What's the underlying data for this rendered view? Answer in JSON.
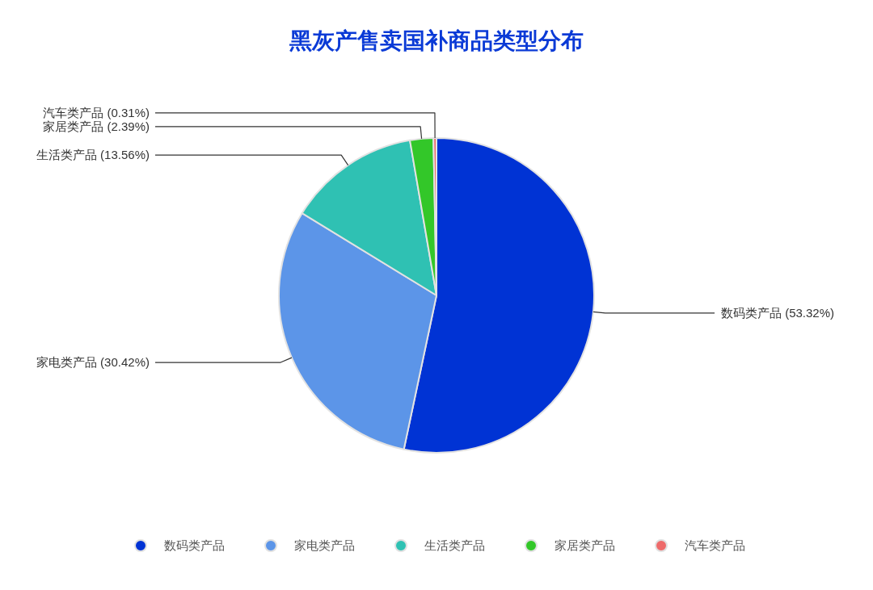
{
  "chart_data": {
    "type": "pie",
    "title": "黑灰产售卖国补商品类型分布",
    "categories": [
      "数码类产品",
      "家电类产品",
      "生活类产品",
      "家居类产品",
      "汽车类产品"
    ],
    "values": [
      53.32,
      30.42,
      13.56,
      2.39,
      0.31
    ],
    "colors": [
      "#0033d4",
      "#5c95e8",
      "#2fc1b3",
      "#33c729",
      "#ee6b6b"
    ],
    "value_labels": [
      "数码类产品 (53.32%)",
      "家电类产品 (30.42%)",
      "生活类产品 (13.56%)",
      "家居类产品 (2.39%)",
      "汽车类产品 (0.31%)"
    ],
    "legend": "bottom"
  }
}
